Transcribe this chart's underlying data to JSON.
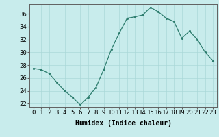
{
  "x": [
    0,
    1,
    2,
    3,
    4,
    5,
    6,
    7,
    8,
    9,
    10,
    11,
    12,
    13,
    14,
    15,
    16,
    17,
    18,
    19,
    20,
    21,
    22,
    23
  ],
  "y": [
    27.5,
    27.3,
    26.7,
    25.3,
    24.0,
    23.0,
    21.8,
    23.0,
    24.5,
    27.3,
    30.5,
    33.0,
    35.3,
    35.5,
    35.8,
    37.0,
    36.3,
    35.3,
    34.8,
    32.2,
    33.3,
    32.0,
    30.0,
    28.7
  ],
  "xlabel": "Humidex (Indice chaleur)",
  "xticks": [
    0,
    1,
    2,
    3,
    4,
    5,
    6,
    7,
    8,
    9,
    10,
    11,
    12,
    13,
    14,
    15,
    16,
    17,
    18,
    19,
    20,
    21,
    22,
    23
  ],
  "yticks": [
    22,
    24,
    26,
    28,
    30,
    32,
    34,
    36
  ],
  "ylim": [
    21.5,
    37.5
  ],
  "xlim": [
    -0.5,
    23.5
  ],
  "line_color": "#2d7d6e",
  "marker_color": "#2d7d6e",
  "bg_color": "#c8ecec",
  "grid_color": "#aad8d8",
  "axis_color": "#606060",
  "xlabel_fontsize": 7,
  "tick_fontsize": 6.5
}
